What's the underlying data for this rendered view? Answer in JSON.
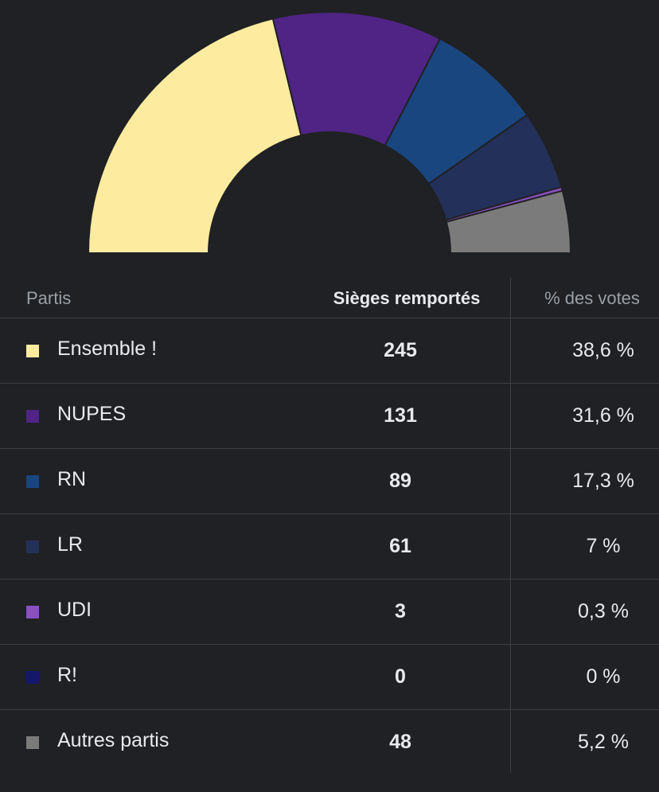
{
  "chart_data": {
    "type": "pie",
    "variant": "half-donut",
    "categories": [
      "Ensemble !",
      "NUPES",
      "RN",
      "LR",
      "UDI",
      "R!",
      "Autres partis"
    ],
    "values": [
      245,
      131,
      89,
      61,
      3,
      0,
      48
    ],
    "colors": [
      "#fdeca0",
      "#4f2485",
      "#19467f",
      "#233059",
      "#8b4fc1",
      "#15166e",
      "#7b7b7b"
    ]
  },
  "table": {
    "headers": {
      "party": "Partis",
      "seats": "Sièges remportés",
      "votes": "% des votes"
    },
    "rows": [
      {
        "party": "Ensemble !",
        "seats": "245",
        "votes": "38,6 %"
      },
      {
        "party": "NUPES",
        "seats": "131",
        "votes": "31,6 %"
      },
      {
        "party": "RN",
        "seats": "89",
        "votes": "17,3 %"
      },
      {
        "party": "LR",
        "seats": "61",
        "votes": "7 %"
      },
      {
        "party": "UDI",
        "seats": "3",
        "votes": "0,3 %"
      },
      {
        "party": "R!",
        "seats": "0",
        "votes": "0 %"
      },
      {
        "party": "Autres partis",
        "seats": "48",
        "votes": "5,2 %"
      }
    ]
  }
}
